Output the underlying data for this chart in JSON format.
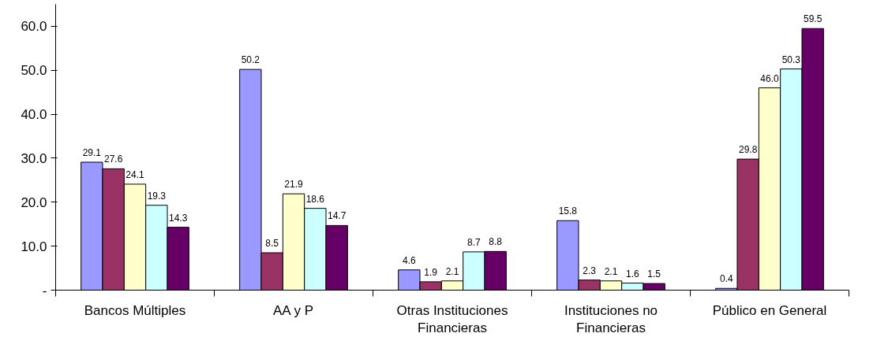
{
  "chart_data": {
    "type": "bar",
    "categories": [
      "Bancos Múltiples",
      "AA y P",
      "Otras Instituciones Financieras",
      "Instituciones no Financieras",
      "Público en General"
    ],
    "series": [
      {
        "color": "#9999ff",
        "values": [
          29.1,
          50.2,
          4.6,
          15.8,
          0.4
        ],
        "value_labels": [
          "29.1",
          "50.2",
          "4.6",
          "15.8",
          "0.4"
        ]
      },
      {
        "color": "#993366",
        "values": [
          27.6,
          8.5,
          1.9,
          2.3,
          29.8
        ],
        "value_labels": [
          "27.6",
          "8.5",
          "1.9",
          "2.3",
          "29.8"
        ]
      },
      {
        "color": "#ffffcc",
        "values": [
          24.1,
          21.9,
          2.1,
          2.1,
          46.0
        ],
        "value_labels": [
          "24.1",
          "21.9",
          "2.1",
          "2.1",
          "46.0"
        ]
      },
      {
        "color": "#ccffff",
        "values": [
          19.3,
          18.6,
          8.7,
          1.6,
          50.3
        ],
        "value_labels": [
          "19.3",
          "18.6",
          "8.7",
          "1.6",
          "50.3"
        ]
      },
      {
        "color": "#660066",
        "values": [
          14.3,
          14.7,
          8.8,
          1.5,
          59.5
        ],
        "value_labels": [
          "14.3",
          "14.7",
          "8.8",
          "1.5",
          "59.5"
        ]
      }
    ],
    "ylim": [
      0,
      65
    ],
    "yticks": [
      {
        "value": 0,
        "label": "-"
      },
      {
        "value": 10,
        "label": "10.0"
      },
      {
        "value": 20,
        "label": "20.0"
      },
      {
        "value": 30,
        "label": "30.0"
      },
      {
        "value": 40,
        "label": "40.0"
      },
      {
        "value": 50,
        "label": "50.0"
      },
      {
        "value": 60,
        "label": "60.0"
      }
    ],
    "grid": false
  }
}
